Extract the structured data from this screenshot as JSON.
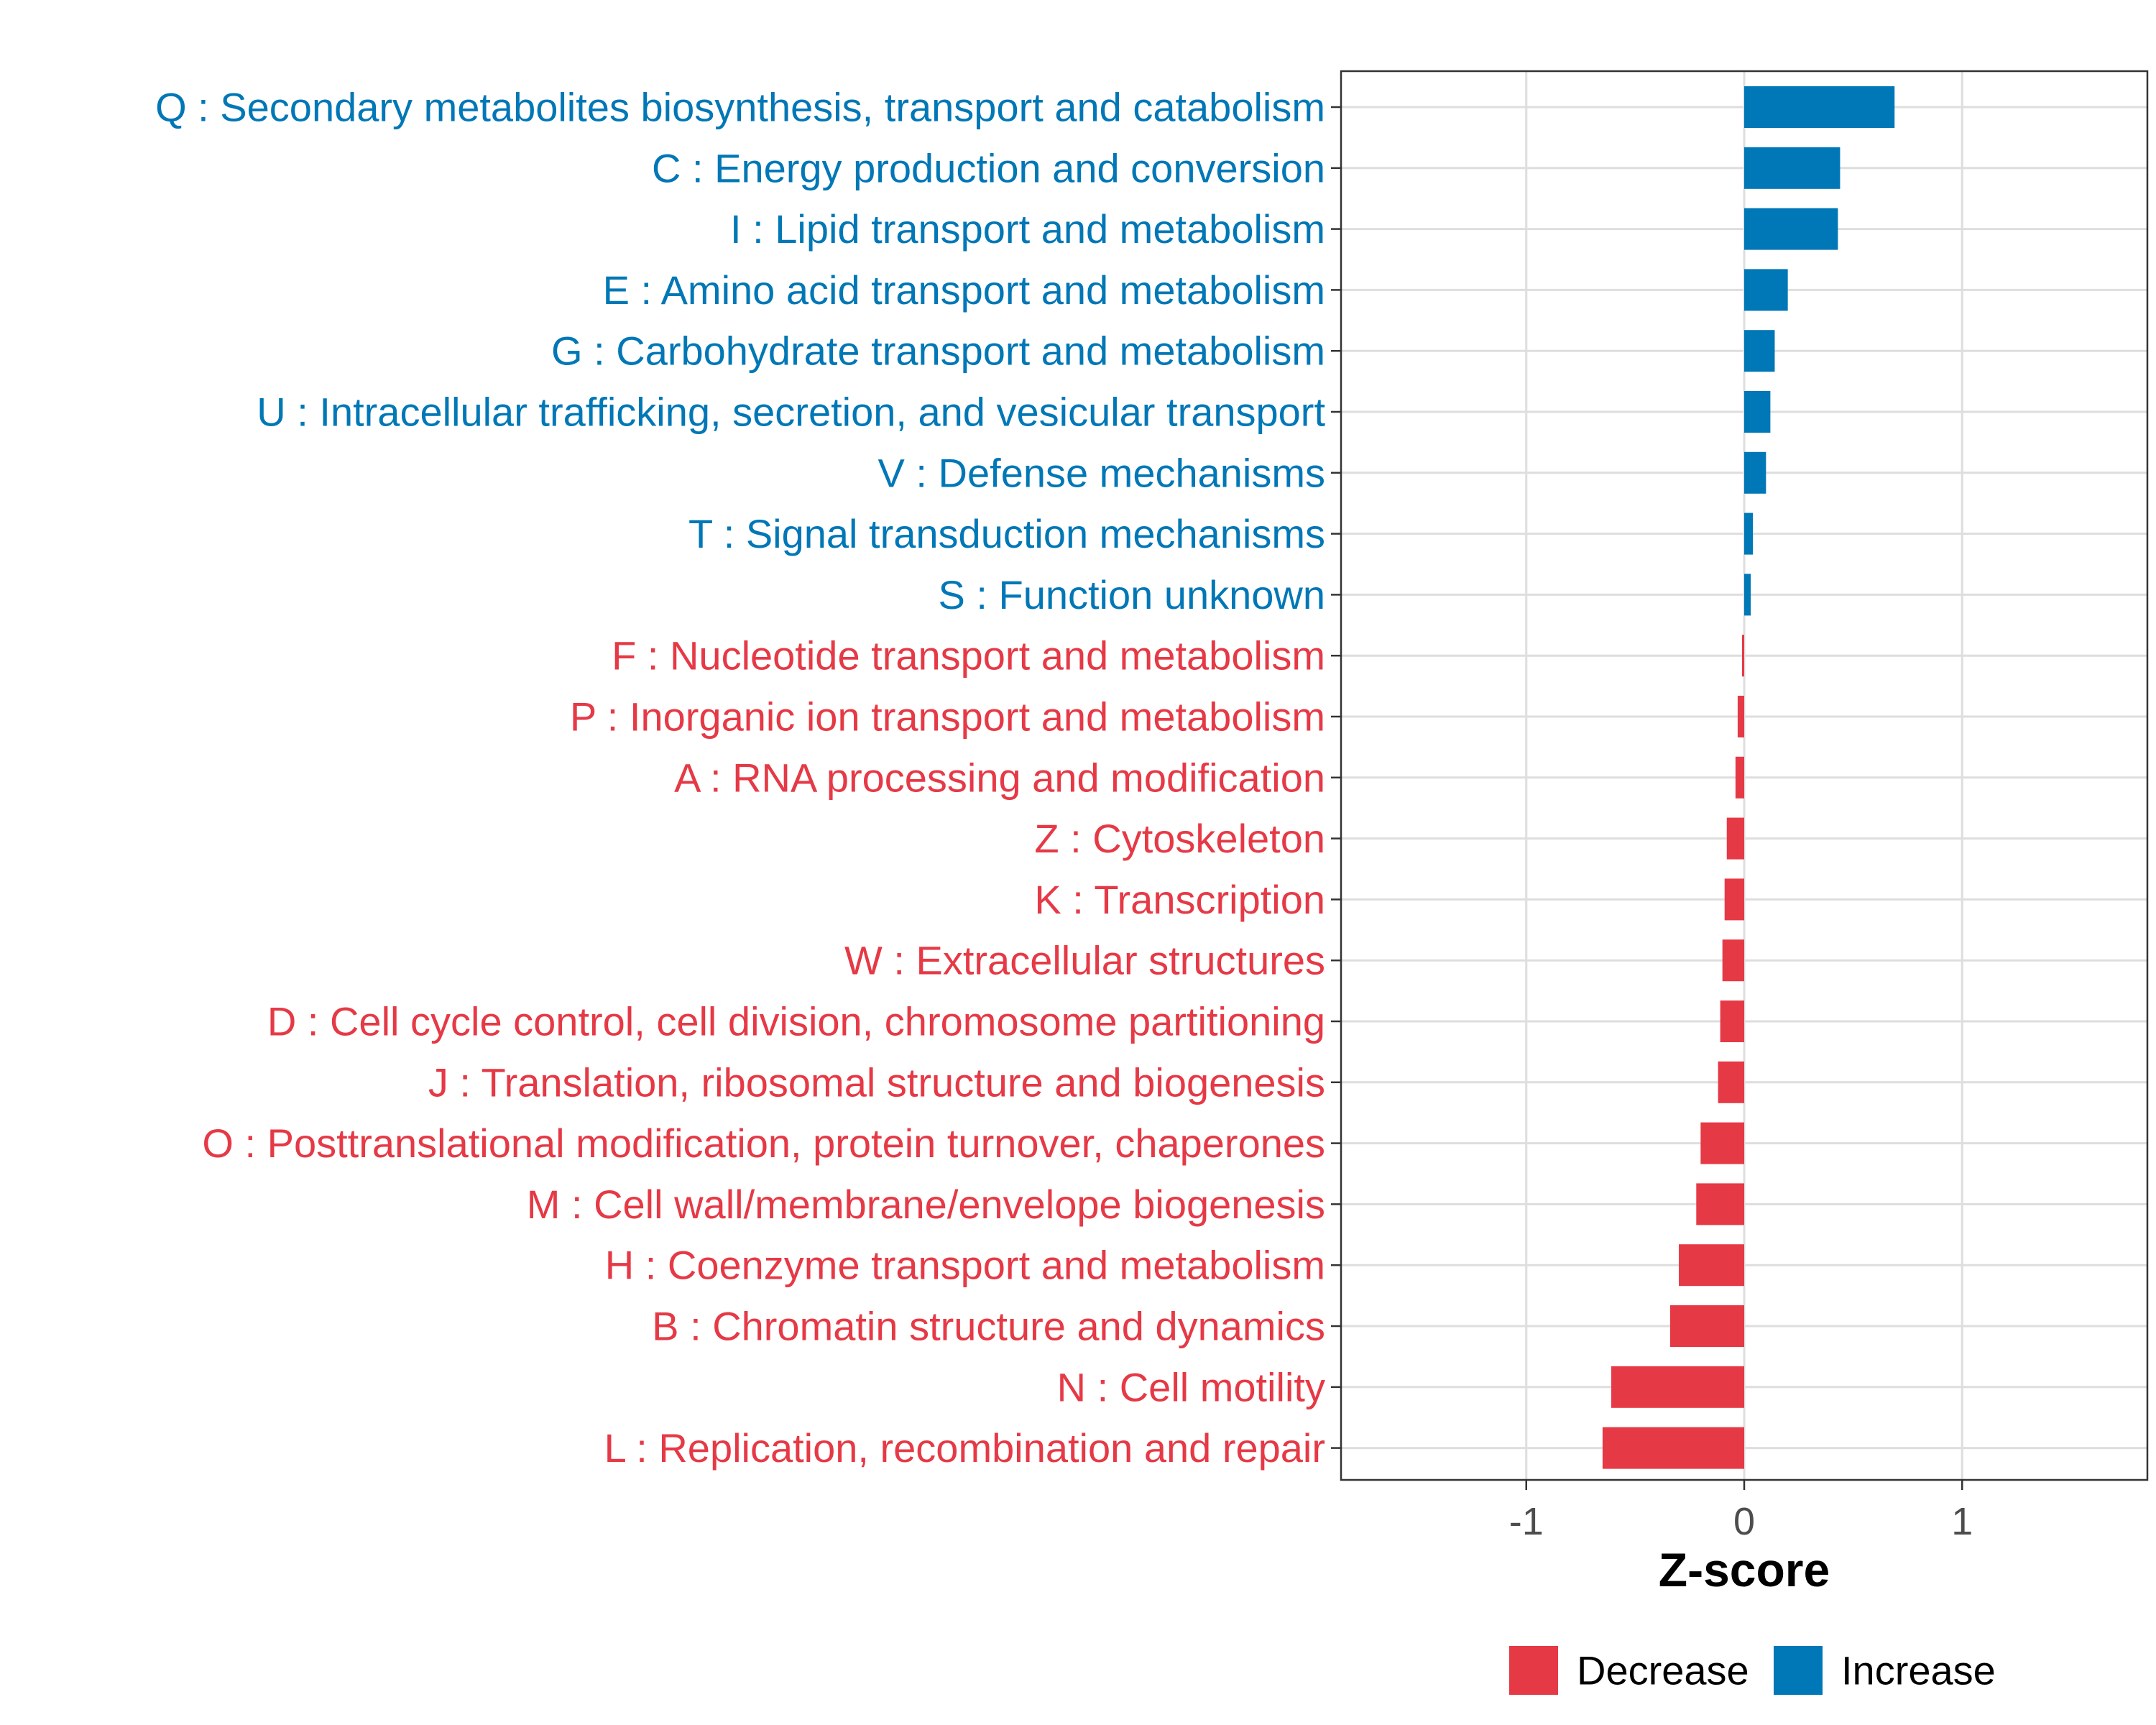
{
  "chart_data": {
    "type": "bar",
    "orientation": "horizontal",
    "title": "",
    "xlabel": "Z-score",
    "ylabel": "",
    "xlim": [
      -1.85,
      1.85
    ],
    "xticks": [
      -1,
      0,
      1
    ],
    "xtick_labels": [
      "-1",
      "0",
      "1"
    ],
    "grid": true,
    "legend_position": "bottom",
    "colors": {
      "Decrease": "#e63946",
      "Increase": "#0077b6"
    },
    "legend": [
      {
        "name": "Decrease",
        "color": "#e63946"
      },
      {
        "name": "Increase",
        "color": "#0077b6"
      }
    ],
    "categories": [
      "Q : Secondary metabolites biosynthesis, transport and catabolism",
      "C : Energy production and conversion",
      "I : Lipid transport and metabolism",
      "E : Amino acid transport and metabolism",
      "G : Carbohydrate transport and metabolism",
      "U : Intracellular trafficking, secretion, and vesicular transport",
      "V : Defense mechanisms",
      "T : Signal transduction mechanisms",
      "S : Function unknown",
      "F : Nucleotide transport and metabolism",
      "P : Inorganic ion transport and metabolism",
      "A : RNA processing and modification",
      "Z : Cytoskeleton",
      "K : Transcription",
      "W : Extracellular structures",
      "D : Cell cycle control, cell division, chromosome partitioning",
      "J : Translation, ribosomal structure and biogenesis",
      "O : Posttranslational modification, protein turnover, chaperones",
      "M : Cell wall/membrane/envelope biogenesis",
      "H : Coenzyme transport and metabolism",
      "B : Chromatin structure and dynamics",
      "N : Cell motility",
      "L : Replication, recombination and repair"
    ],
    "values": [
      0.69,
      0.44,
      0.43,
      0.2,
      0.14,
      0.12,
      0.1,
      0.04,
      0.03,
      -0.01,
      -0.03,
      -0.04,
      -0.08,
      -0.09,
      -0.1,
      -0.11,
      -0.12,
      -0.2,
      -0.22,
      -0.3,
      -0.34,
      -0.61,
      -0.65
    ],
    "groups": [
      "Increase",
      "Increase",
      "Increase",
      "Increase",
      "Increase",
      "Increase",
      "Increase",
      "Increase",
      "Increase",
      "Decrease",
      "Decrease",
      "Decrease",
      "Decrease",
      "Decrease",
      "Decrease",
      "Decrease",
      "Decrease",
      "Decrease",
      "Decrease",
      "Decrease",
      "Decrease",
      "Decrease",
      "Decrease"
    ]
  }
}
